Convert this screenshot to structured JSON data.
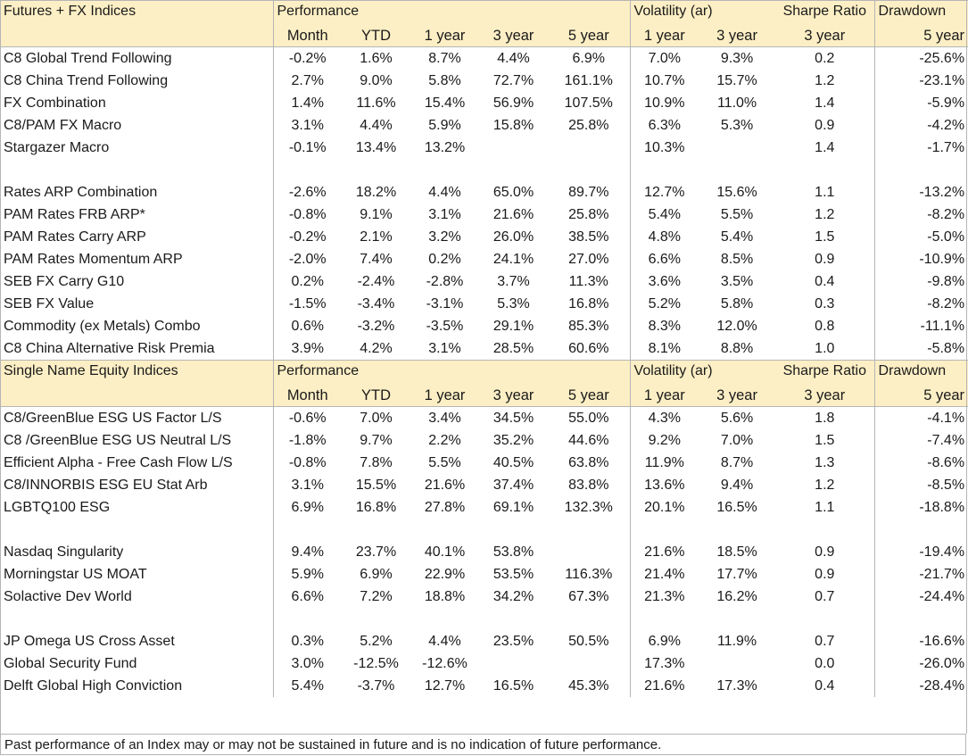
{
  "sections": [
    {
      "title": "Futures + FX Indices",
      "group_headers": {
        "performance": "Performance",
        "volatility": "Volatility (ar)",
        "sharpe": "Sharpe Ratio",
        "drawdown": "Drawdown"
      },
      "columns": [
        "Month",
        "YTD",
        "1 year",
        "3 year",
        "5 year",
        "1 year",
        "3 year",
        "3 year",
        "5 year"
      ],
      "rows": [
        [
          "C8 Global Trend Following",
          "-0.2%",
          "1.6%",
          "8.7%",
          "4.4%",
          "6.9%",
          "7.0%",
          "9.3%",
          "0.2",
          "-25.6%"
        ],
        [
          "C8 China Trend Following",
          "2.7%",
          "9.0%",
          "5.8%",
          "72.7%",
          "161.1%",
          "10.7%",
          "15.7%",
          "1.2",
          "-23.1%"
        ],
        [
          "FX Combination",
          "1.4%",
          "11.6%",
          "15.4%",
          "56.9%",
          "107.5%",
          "10.9%",
          "11.0%",
          "1.4",
          "-5.9%"
        ],
        [
          "C8/PAM FX Macro",
          "3.1%",
          "4.4%",
          "5.9%",
          "15.8%",
          "25.8%",
          "6.3%",
          "5.3%",
          "0.9",
          "-4.2%"
        ],
        [
          "Stargazer Macro",
          "-0.1%",
          "13.4%",
          "13.2%",
          "",
          "",
          "10.3%",
          "",
          "1.4",
          "-1.7%"
        ],
        null,
        [
          "Rates ARP Combination",
          "-2.6%",
          "18.2%",
          "4.4%",
          "65.0%",
          "89.7%",
          "12.7%",
          "15.6%",
          "1.1",
          "-13.2%"
        ],
        [
          "PAM Rates FRB ARP*",
          "-0.8%",
          "9.1%",
          "3.1%",
          "21.6%",
          "25.8%",
          "5.4%",
          "5.5%",
          "1.2",
          "-8.2%"
        ],
        [
          "PAM Rates Carry ARP",
          "-0.2%",
          "2.1%",
          "3.2%",
          "26.0%",
          "38.5%",
          "4.8%",
          "5.4%",
          "1.5",
          "-5.0%"
        ],
        [
          "PAM Rates Momentum ARP",
          "-2.0%",
          "7.4%",
          "0.2%",
          "24.1%",
          "27.0%",
          "6.6%",
          "8.5%",
          "0.9",
          "-10.9%"
        ],
        [
          "SEB FX Carry G10",
          "0.2%",
          "-2.4%",
          "-2.8%",
          "3.7%",
          "11.3%",
          "3.6%",
          "3.5%",
          "0.4",
          "-9.8%"
        ],
        [
          "SEB FX Value",
          "-1.5%",
          "-3.4%",
          "-3.1%",
          "5.3%",
          "16.8%",
          "5.2%",
          "5.8%",
          "0.3",
          "-8.2%"
        ],
        [
          "Commodity (ex Metals) Combo",
          "0.6%",
          "-3.2%",
          "-3.5%",
          "29.1%",
          "85.3%",
          "8.3%",
          "12.0%",
          "0.8",
          "-11.1%"
        ],
        [
          "C8 China Alternative Risk Premia",
          "3.9%",
          "4.2%",
          "3.1%",
          "28.5%",
          "60.6%",
          "8.1%",
          "8.8%",
          "1.0",
          "-5.8%"
        ]
      ]
    },
    {
      "title": "Single Name Equity Indices",
      "group_headers": {
        "performance": "Performance",
        "volatility": "Volatility (ar)",
        "sharpe": "Sharpe Ratio",
        "drawdown": "Drawdown"
      },
      "columns": [
        "Month",
        "YTD",
        "1 year",
        "3 year",
        "5 year",
        "1 year",
        "3 year",
        "3 year",
        "5 year"
      ],
      "rows": [
        [
          "C8/GreenBlue ESG US Factor L/S",
          "-0.6%",
          "7.0%",
          "3.4%",
          "34.5%",
          "55.0%",
          "4.3%",
          "5.6%",
          "1.8",
          "-4.1%"
        ],
        [
          "C8 /GreenBlue ESG US Neutral L/S",
          "-1.8%",
          "9.7%",
          "2.2%",
          "35.2%",
          "44.6%",
          "9.2%",
          "7.0%",
          "1.5",
          "-7.4%"
        ],
        [
          "Efficient Alpha - Free Cash Flow L/S",
          "-0.8%",
          "7.8%",
          "5.5%",
          "40.5%",
          "63.8%",
          "11.9%",
          "8.7%",
          "1.3",
          "-8.6%"
        ],
        [
          "C8/INNORBIS ESG EU Stat Arb",
          "3.1%",
          "15.5%",
          "21.6%",
          "37.4%",
          "83.8%",
          "13.6%",
          "9.4%",
          "1.2",
          "-8.5%"
        ],
        [
          "LGBTQ100 ESG",
          "6.9%",
          "16.8%",
          "27.8%",
          "69.1%",
          "132.3%",
          "20.1%",
          "16.5%",
          "1.1",
          "-18.8%"
        ],
        null,
        [
          "Nasdaq Singularity",
          "9.4%",
          "23.7%",
          "40.1%",
          "53.8%",
          "",
          "21.6%",
          "18.5%",
          "0.9",
          "-19.4%"
        ],
        [
          "Morningstar US MOAT",
          "5.9%",
          "6.9%",
          "22.9%",
          "53.5%",
          "116.3%",
          "21.4%",
          "17.7%",
          "0.9",
          "-21.7%"
        ],
        [
          "Solactive  Dev World",
          "6.6%",
          "7.2%",
          "18.8%",
          "34.2%",
          "67.3%",
          "21.3%",
          "16.2%",
          "0.7",
          "-24.4%"
        ],
        null,
        [
          "JP Omega US Cross Asset",
          "0.3%",
          "5.2%",
          "4.4%",
          "23.5%",
          "50.5%",
          "6.9%",
          "11.9%",
          "0.7",
          "-16.6%"
        ],
        [
          "Global Security Fund",
          "3.0%",
          "-12.5%",
          "-12.6%",
          "",
          "",
          "17.3%",
          "",
          "0.0",
          "-26.0%"
        ],
        [
          "Delft Global High Conviction",
          "5.4%",
          "-3.7%",
          "12.7%",
          "16.5%",
          "45.3%",
          "21.6%",
          "17.3%",
          "0.4",
          "-28.4%"
        ]
      ]
    }
  ],
  "footnote": "Past performance of an Index may or may not be sustained in future and is no indication of future performance."
}
